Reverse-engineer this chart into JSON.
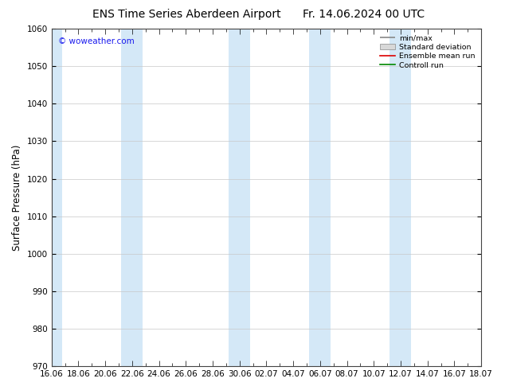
{
  "title_left": "ENS Time Series Aberdeen Airport",
  "title_right": "Fr. 14.06.2024 00 UTC",
  "ylabel": "Surface Pressure (hPa)",
  "ylim": [
    970,
    1060
  ],
  "yticks": [
    970,
    980,
    990,
    1000,
    1010,
    1020,
    1030,
    1040,
    1050,
    1060
  ],
  "xtick_labels": [
    "16.06",
    "18.06",
    "20.06",
    "22.06",
    "24.06",
    "26.06",
    "28.06",
    "30.06",
    "02.07",
    "04.07",
    "06.07",
    "08.07",
    "10.07",
    "12.07",
    "14.07",
    "16.07",
    "18.07"
  ],
  "watermark": "© woweather.com",
  "legend_entries": [
    "min/max",
    "Standard deviation",
    "Ensemble mean run",
    "Controll run"
  ],
  "band_color": "#d4e8f7",
  "background_color": "#ffffff",
  "title_fontsize": 10,
  "axis_fontsize": 8.5,
  "tick_fontsize": 7.5,
  "watermark_color": "#1a1aee"
}
